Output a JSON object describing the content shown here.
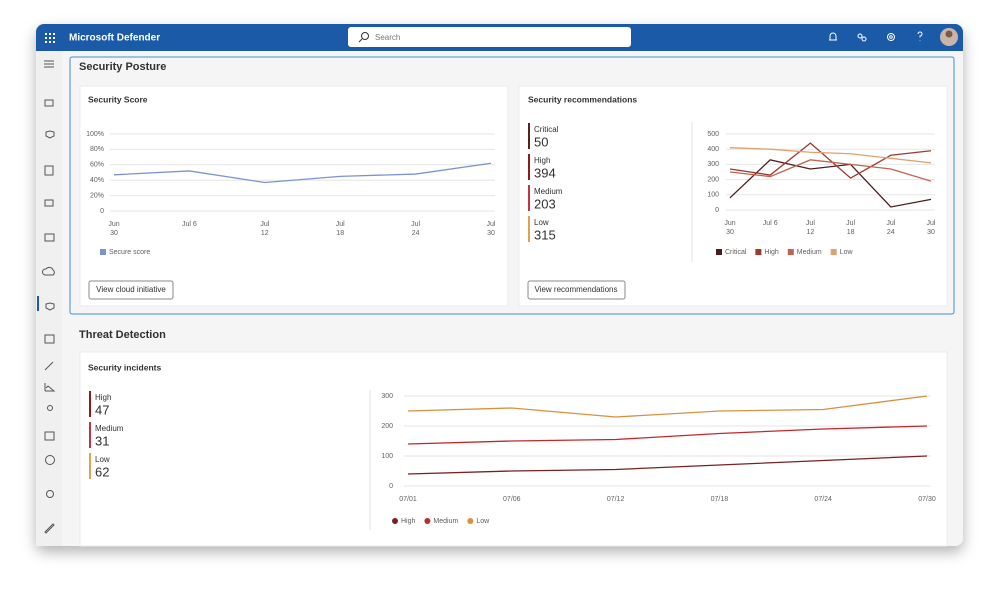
{
  "header": {
    "app_name": "Microsoft Defender",
    "search_placeholder": "Search"
  },
  "security_posture": {
    "title": "Security Posture",
    "score_card": {
      "title": "Security Score",
      "chart": {
        "type": "line",
        "categories": [
          "Jun 30",
          "Jul 6",
          "Jul 12",
          "Jul 18",
          "Jul 24",
          "Jul 30"
        ],
        "series": [
          {
            "name": "Secure score",
            "color": "#7b93d1",
            "values": [
              47,
              52,
              37,
              45,
              48,
              62
            ]
          }
        ],
        "ylim": [
          0,
          100
        ],
        "yticks": [
          0,
          {
            "value": 20,
            "label": "20%"
          },
          {
            "value": 40,
            "label": "40%"
          },
          {
            "value": 60,
            "label": "60%"
          },
          {
            "value": 80,
            "label": "80%"
          },
          {
            "value": 100,
            "label": "100%"
          }
        ],
        "grid": true,
        "legend_marker": "square"
      },
      "button": "View cloud initiative"
    },
    "recommendations_card": {
      "title": "Security recommendations",
      "stats": [
        {
          "label": "Critical",
          "value": 50,
          "color": "#5c1f1f"
        },
        {
          "label": "High",
          "value": 394,
          "color": "#8e1b1b"
        },
        {
          "label": "Medium",
          "value": 203,
          "color": "#c4314b"
        },
        {
          "label": "Low",
          "value": 315,
          "color": "#e3a04f"
        }
      ],
      "chart": {
        "type": "line",
        "categories": [
          "Jun 30",
          "Jul 6",
          "Jul 12",
          "Jul 18",
          "Jul 24",
          "Jul 30"
        ],
        "series": [
          {
            "name": "Critical",
            "color": "#4a1d1d",
            "values": [
              80,
              330,
              270,
              300,
              20,
              70
            ]
          },
          {
            "name": "High",
            "color": "#9e3a2e",
            "values": [
              270,
              230,
              440,
              210,
              360,
              390
            ]
          },
          {
            "name": "Medium",
            "color": "#c0634f",
            "values": [
              250,
              220,
              330,
              300,
              270,
              190
            ]
          },
          {
            "name": "Low",
            "color": "#e0a070",
            "values": [
              410,
              400,
              380,
              370,
              340,
              310
            ]
          }
        ],
        "ylim": [
          0,
          500
        ],
        "yticks": [
          0,
          100,
          200,
          300,
          400,
          500
        ],
        "grid": true,
        "legend_marker": "square"
      },
      "button": "View recommendations"
    }
  },
  "threat_detection": {
    "title": "Threat Detection",
    "incidents_card": {
      "title": "Security incidents",
      "stats": [
        {
          "label": "High",
          "value": 47,
          "color": "#8e1b1b"
        },
        {
          "label": "Medium",
          "value": 31,
          "color": "#c4314b"
        },
        {
          "label": "Low",
          "value": 62,
          "color": "#e3a04f"
        }
      ],
      "chart": {
        "type": "line",
        "categories": [
          "07/01",
          "07/06",
          "07/12",
          "07/18",
          "07/24",
          "07/30"
        ],
        "series": [
          {
            "name": "High",
            "color": "#7a2020",
            "values": [
              40,
              50,
              55,
              70,
              85,
              100
            ]
          },
          {
            "name": "Medium",
            "color": "#c0282d",
            "values": [
              140,
              150,
              155,
              175,
              190,
              200
            ]
          },
          {
            "name": "Low",
            "color": "#d9913f",
            "values": [
              250,
              260,
              230,
              250,
              255,
              300
            ]
          }
        ],
        "ylim": [
          0,
          300
        ],
        "yticks": [
          0,
          100,
          200,
          300
        ],
        "grid": true,
        "legend_marker": "circle"
      }
    }
  }
}
